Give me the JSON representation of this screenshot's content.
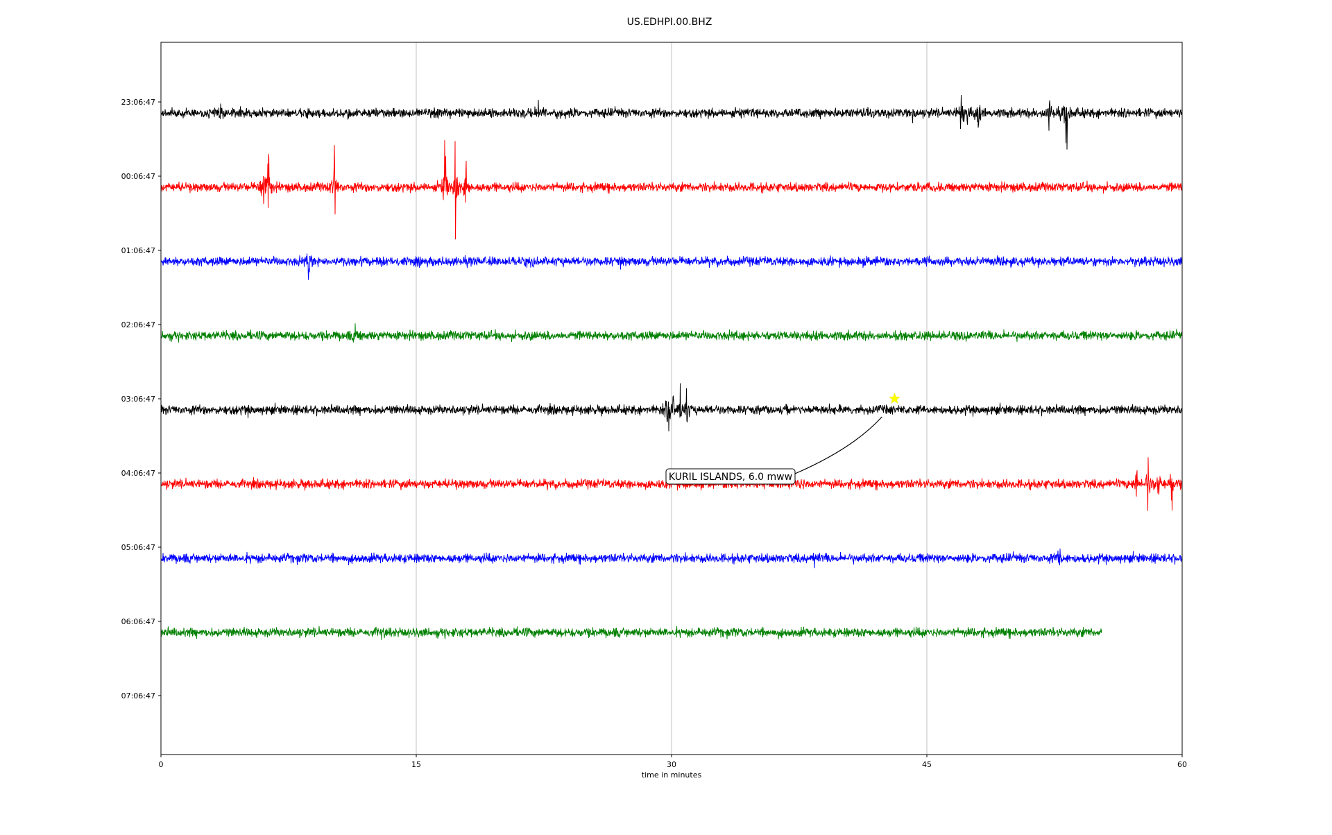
{
  "chart_data": {
    "type": "line",
    "title": "US.EDHPI.00.BHZ",
    "xlabel": "time in minutes",
    "ylabel": "",
    "xlim": [
      0,
      60
    ],
    "x_ticks": [
      "0",
      "15",
      "30",
      "45",
      "60"
    ],
    "x_tick_values": [
      0,
      15,
      30,
      45,
      60
    ],
    "grid_x": true,
    "colors": [
      "#000000",
      "#ff0000",
      "#0000ff",
      "#008000"
    ],
    "series": [
      {
        "label": "23:06:47",
        "color": "#000000",
        "end_minute": 60,
        "events": [
          {
            "t": 3.5,
            "amp": 0.5
          },
          {
            "t": 22.2,
            "amp": 0.7
          },
          {
            "t": 44.2,
            "amp": 0.5
          },
          {
            "t": 47.0,
            "amp": 2.2
          },
          {
            "t": 47.4,
            "amp": 1.6
          },
          {
            "t": 48.0,
            "amp": 1.6
          },
          {
            "t": 52.2,
            "amp": 2.6
          },
          {
            "t": 53.2,
            "amp": 2.8
          }
        ]
      },
      {
        "label": "00:06:47",
        "color": "#ff0000",
        "end_minute": 60,
        "events": [
          {
            "t": 6.0,
            "amp": 2.4
          },
          {
            "t": 6.3,
            "amp": 3.0
          },
          {
            "t": 10.2,
            "amp": 2.8
          },
          {
            "t": 16.7,
            "amp": 3.4
          },
          {
            "t": 17.3,
            "amp": 4.0
          },
          {
            "t": 17.9,
            "amp": 2.6
          }
        ]
      },
      {
        "label": "01:06:47",
        "color": "#0000ff",
        "end_minute": 60,
        "events": [
          {
            "t": 8.7,
            "amp": 1.4
          },
          {
            "t": 27.0,
            "amp": 0.6
          }
        ]
      },
      {
        "label": "02:06:47",
        "color": "#008000",
        "end_minute": 60,
        "events": [
          {
            "t": 11.4,
            "amp": 0.6
          }
        ]
      },
      {
        "label": "03:06:47",
        "color": "#000000",
        "end_minute": 60,
        "events": [
          {
            "t": 29.8,
            "amp": 2.8
          },
          {
            "t": 30.1,
            "amp": 2.2
          },
          {
            "t": 30.5,
            "amp": 1.8
          },
          {
            "t": 30.9,
            "amp": 1.4
          },
          {
            "t": 5.0,
            "amp": 0.6
          }
        ]
      },
      {
        "label": "04:06:47",
        "color": "#ff0000",
        "end_minute": 60,
        "events": [
          {
            "t": 57.3,
            "amp": 2.0
          },
          {
            "t": 58.0,
            "amp": 2.6
          },
          {
            "t": 58.6,
            "amp": 2.0
          },
          {
            "t": 59.4,
            "amp": 1.8
          },
          {
            "t": 37.6,
            "amp": 0.6
          }
        ]
      },
      {
        "label": "05:06:47",
        "color": "#0000ff",
        "end_minute": 60,
        "events": [
          {
            "t": 52.8,
            "amp": 1.0
          },
          {
            "t": 38.4,
            "amp": 0.5
          }
        ]
      },
      {
        "label": "06:06:47",
        "color": "#008000",
        "end_minute": 55.3,
        "events": [
          {
            "t": 13.0,
            "amp": 0.5
          }
        ]
      },
      {
        "label": "07:06:47",
        "color": "#000000",
        "end_minute": 0,
        "events": []
      }
    ],
    "annotations": [
      {
        "text": "KURIL ISLANDS, 6.0 mww",
        "marker": "star",
        "marker_color": "#ffff00",
        "row": 4,
        "minute": 43.1,
        "box_fill": "#ffffff"
      }
    ]
  }
}
